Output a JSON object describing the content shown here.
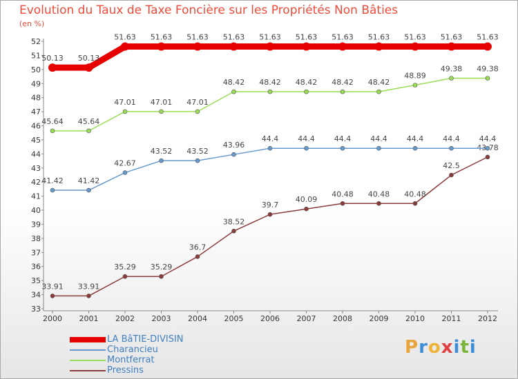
{
  "title": "Evolution du Taux de Taxe Foncière sur les Propriétés Non Bâties",
  "unit_label": "(en %)",
  "brand": {
    "letters": [
      "P",
      "r",
      "o",
      "x",
      "i",
      "t",
      "i"
    ],
    "colors": [
      "#e8a33b",
      "#3c8ed6",
      "#f0b33a",
      "#e04040",
      "#3c8ed6",
      "#79b53a",
      "#3c8ed6"
    ]
  },
  "chart_data": {
    "type": "line",
    "x": [
      "2000",
      "2001",
      "2002",
      "2003",
      "2004",
      "2005",
      "2006",
      "2007",
      "2008",
      "2009",
      "2010",
      "2011",
      "2012"
    ],
    "ylim": [
      33,
      52
    ],
    "yticks": [
      33,
      34,
      35,
      36,
      37,
      38,
      39,
      40,
      41,
      42,
      43,
      44,
      45,
      46,
      47,
      48,
      49,
      50,
      51,
      52
    ],
    "grid": false,
    "legend_position": "bottom-left",
    "series": [
      {
        "name": "LA BâTIE-DIVISIN",
        "color": "#e60000",
        "values": [
          50.13,
          50.13,
          51.63,
          51.63,
          51.63,
          51.63,
          51.63,
          51.63,
          51.63,
          51.63,
          51.63,
          51.63,
          51.63
        ],
        "labels": [
          "50.13",
          "50.13",
          "51.63",
          "51.63",
          "51.63",
          "51.63",
          "51.63",
          "51.63",
          "51.63",
          "51.63",
          "51.63",
          "51.63",
          "51.63"
        ]
      },
      {
        "name": "Charancieu",
        "color": "#6699cc",
        "values": [
          41.42,
          41.42,
          42.67,
          43.52,
          43.52,
          43.96,
          44.4,
          44.4,
          44.4,
          44.4,
          44.4,
          44.4,
          44.4
        ],
        "labels": [
          "41.42",
          "41.42",
          "42.67",
          "43.52",
          "43.52",
          "43.96",
          "44.4",
          "44.4",
          "44.4",
          "44.4",
          "44.4",
          "44.4",
          "44.4"
        ]
      },
      {
        "name": "Montferrat",
        "color": "#99dd55",
        "values": [
          45.64,
          45.64,
          47.01,
          47.01,
          47.01,
          48.42,
          48.42,
          48.42,
          48.42,
          48.42,
          48.89,
          49.38,
          49.38
        ],
        "labels": [
          "45.64",
          "45.64",
          "47.01",
          "47.01",
          "47.01",
          "48.42",
          "48.42",
          "48.42",
          "48.42",
          "48.42",
          "48.89",
          "49.38",
          "49.38"
        ]
      },
      {
        "name": "Pressins",
        "color": "#8b3a3a",
        "values": [
          33.91,
          33.91,
          35.29,
          35.29,
          36.7,
          38.52,
          39.7,
          40.09,
          40.48,
          40.48,
          40.48,
          42.5,
          43.78
        ],
        "labels": [
          "33.91",
          "33.91",
          "35.29",
          "35.29",
          "36.7",
          "38.52",
          "39.7",
          "40.09",
          "40.48",
          "40.48",
          "40.48",
          "42.5",
          "43.78"
        ]
      }
    ]
  }
}
